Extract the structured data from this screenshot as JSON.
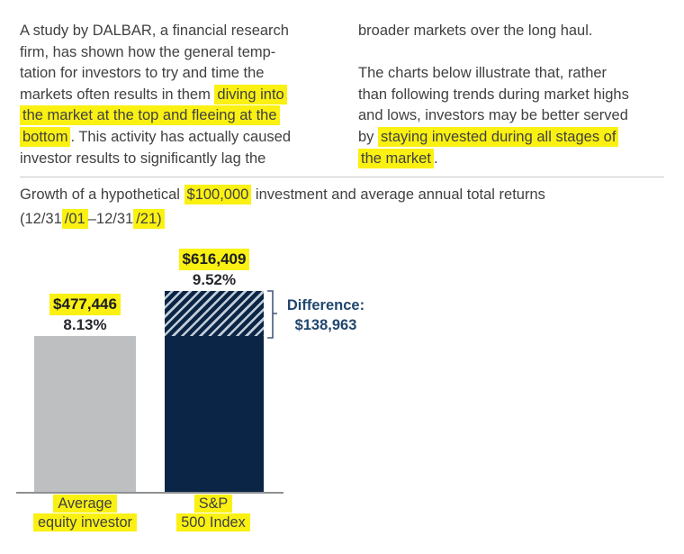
{
  "colors": {
    "page_background": "#FFFFFF",
    "body_text": "#414042",
    "highlight_yellow": "#FAF112",
    "bar_gray": "#BDBFC1",
    "bar_navy": "#0A2545",
    "hatch_stripe": "#C2CCD9",
    "difference_text": "#21476E",
    "bracket": "#44597A",
    "divider_line": "#C9C9C9",
    "axis_line": "#8E9093",
    "value_label_text": "#1D1D1F",
    "percent_label_text": "#26282E"
  },
  "intro": {
    "left_paragraph_runs": [
      {
        "text": "A study by DALBAR, a financial research"
      },
      {
        "br": true
      },
      {
        "text": "firm, has shown how the general temp-"
      },
      {
        "br": true
      },
      {
        "text": "tation for investors to try and time the"
      },
      {
        "br": true
      },
      {
        "text": "markets often results in them "
      },
      {
        "text": "diving into",
        "hl": true
      },
      {
        "br": true
      },
      {
        "text": "the market at the top and fleeing at the",
        "hl": true
      },
      {
        "br": true
      },
      {
        "text": "bottom",
        "hl": true
      },
      {
        "text": ". This activity has actually caused"
      },
      {
        "br": true
      },
      {
        "text": "investor results to significantly lag the"
      }
    ],
    "right_paragraph_1_runs": [
      {
        "text": "broader markets over the long haul."
      }
    ],
    "right_paragraph_2_runs": [
      {
        "text": "The charts below illustrate that, rather"
      },
      {
        "br": true
      },
      {
        "text": "than following trends during market highs"
      },
      {
        "br": true
      },
      {
        "text": "and lows, investors may be better served"
      },
      {
        "br": true
      },
      {
        "text": "by "
      },
      {
        "text": "staying invested during all stages of",
        "hl": true
      },
      {
        "br": true
      },
      {
        "text": "the market",
        "hl": true
      },
      {
        "text": "."
      }
    ]
  },
  "chart_heading_runs": [
    {
      "text": "Growth of a hypothetical "
    },
    {
      "text": "$100,000",
      "hl": true
    },
    {
      "text": " investment and average annual total returns"
    },
    {
      "br": true
    },
    {
      "text": "(12/31"
    },
    {
      "text": "/01",
      "hl": true
    },
    {
      "text": "–12/31"
    },
    {
      "text": "/21)",
      "hl": true
    }
  ],
  "chart_data": {
    "type": "bar",
    "title": "Growth of a hypothetical $100,000 investment and average annual total returns (12/31/01–12/31/21)",
    "categories": [
      "Average equity investor",
      "S&P 500 Index"
    ],
    "category_label_lines": [
      [
        "Average",
        "equity investor"
      ],
      [
        "S&P",
        "500 Index"
      ]
    ],
    "values": [
      477446,
      616409
    ],
    "value_labels": [
      "$477,446",
      "$616,409"
    ],
    "percent_labels": [
      "8.13%",
      "9.52%"
    ],
    "avg_annual_total_returns_pct": [
      8.13,
      9.52
    ],
    "difference": {
      "label": "Difference:",
      "value_label": "$138,963",
      "value": 138963
    },
    "ylim": [
      0,
      650000
    ],
    "bar_colors": [
      "#BDBFC1",
      "#0A2545"
    ],
    "hatch_stripe_color": "#C2CCD9",
    "grid": false,
    "legend": "none"
  }
}
